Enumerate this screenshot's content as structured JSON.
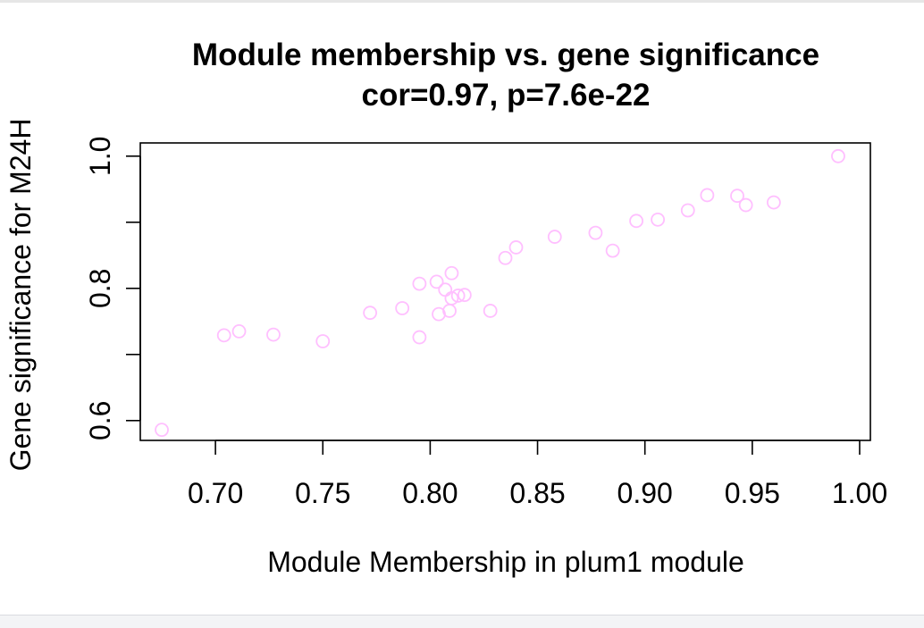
{
  "chart_data": {
    "type": "scatter",
    "title": "Module membership vs. gene significance",
    "subtitle": "cor=0.97, p=7.6e-22",
    "xlabel": "Module Membership in plum1 module",
    "ylabel": "Gene significance for M24H",
    "xlim": [
      0.665,
      1.005
    ],
    "ylim": [
      0.57,
      1.02
    ],
    "x_ticks": [
      0.7,
      0.75,
      0.8,
      0.85,
      0.9,
      0.95,
      1.0
    ],
    "x_tick_labels": [
      "0.70",
      "0.75",
      "0.80",
      "0.85",
      "0.90",
      "0.95",
      "1.00"
    ],
    "y_ticks": [
      0.6,
      0.7,
      0.8,
      0.9,
      1.0
    ],
    "y_tick_labels": [
      "0.6",
      "",
      "0.8",
      "",
      "1.0"
    ],
    "grid": false,
    "legend": "none",
    "marker_color": "#ffbfff",
    "x": [
      0.675,
      0.704,
      0.711,
      0.727,
      0.75,
      0.772,
      0.787,
      0.795,
      0.795,
      0.803,
      0.804,
      0.807,
      0.809,
      0.81,
      0.81,
      0.813,
      0.816,
      0.828,
      0.835,
      0.84,
      0.858,
      0.877,
      0.885,
      0.896,
      0.906,
      0.92,
      0.929,
      0.943,
      0.947,
      0.96,
      0.99
    ],
    "y": [
      0.586,
      0.729,
      0.735,
      0.73,
      0.72,
      0.763,
      0.77,
      0.726,
      0.807,
      0.81,
      0.761,
      0.798,
      0.766,
      0.785,
      0.823,
      0.789,
      0.79,
      0.766,
      0.846,
      0.862,
      0.878,
      0.884,
      0.857,
      0.902,
      0.904,
      0.918,
      0.941,
      0.94,
      0.926,
      0.93,
      1.0
    ]
  }
}
